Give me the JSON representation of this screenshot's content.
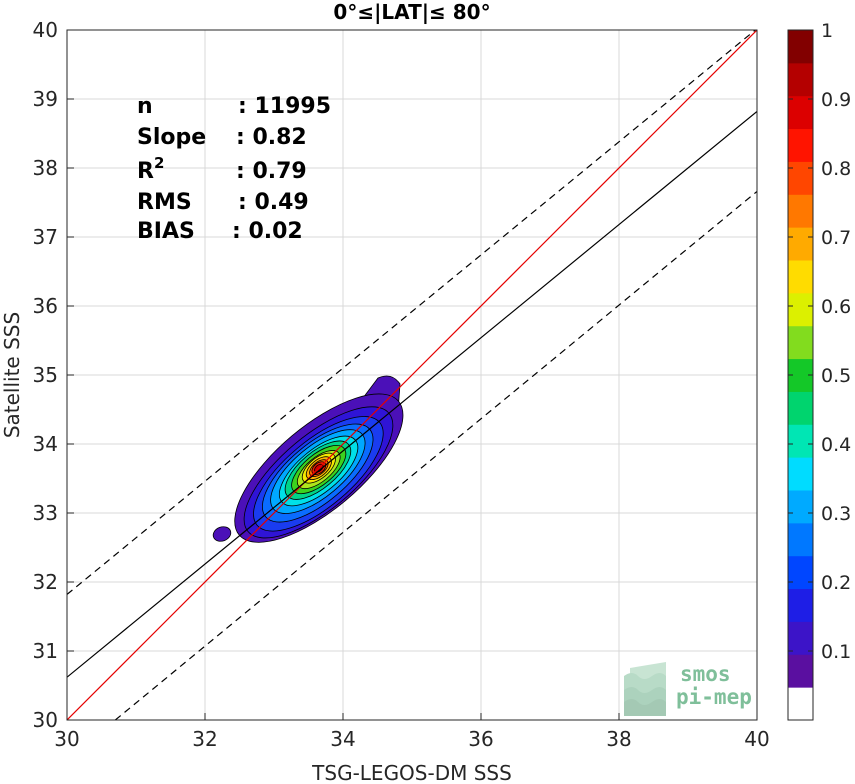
{
  "chart_data": {
    "type": "contour",
    "title": "0°≤|LAT|≤ 80°",
    "xlabel": "TSG-LEGOS-DM SSS",
    "ylabel": "Satellite SSS",
    "xlim": [
      30,
      40
    ],
    "ylim": [
      30,
      40
    ],
    "xticks": [
      "30",
      "32",
      "34",
      "36",
      "38",
      "40"
    ],
    "yticks": [
      "30",
      "31",
      "32",
      "33",
      "34",
      "35",
      "36",
      "37",
      "38",
      "39",
      "40"
    ],
    "grid": true,
    "stats": [
      {
        "label": "n",
        "value": ": 11995"
      },
      {
        "label": "Slope",
        "value": ": 0.82"
      },
      {
        "label": "R",
        "sup": "2",
        "value": ": 0.79"
      },
      {
        "label": "RMS",
        "value": ": 0.49"
      },
      {
        "label": "BIAS",
        "value": ": 0.02"
      }
    ],
    "lines": [
      {
        "kind": "identity",
        "color": "#e60000",
        "points": [
          [
            30,
            30
          ],
          [
            40,
            40
          ]
        ]
      },
      {
        "kind": "regression",
        "color": "#000000",
        "points": [
          [
            30,
            30.62
          ],
          [
            40,
            38.82
          ]
        ]
      },
      {
        "kind": "upper-bound",
        "color": "#000000",
        "dash": true,
        "points": [
          [
            30,
            31.82
          ],
          [
            40,
            40.02
          ]
        ]
      },
      {
        "kind": "lower-bound",
        "color": "#000000",
        "dash": true,
        "points": [
          [
            30.7,
            30
          ],
          [
            40,
            37.66
          ]
        ]
      }
    ],
    "density_peak": {
      "x": 33.65,
      "y": 33.65
    },
    "colorbar": {
      "ticks": [
        "0.1",
        "0.2",
        "0.3",
        "0.4",
        "0.5",
        "0.6",
        "0.7",
        "0.8",
        "0.9",
        "1"
      ],
      "range": [
        0,
        1
      ],
      "colors": [
        "#ffffff",
        "#5a0fa0",
        "#3c14c8",
        "#1e1ee6",
        "#0046ff",
        "#0078ff",
        "#00aaff",
        "#00dcff",
        "#00e6b4",
        "#00d46e",
        "#14c828",
        "#82dc1e",
        "#dcf000",
        "#ffdc00",
        "#ffaa00",
        "#ff7800",
        "#ff4600",
        "#ff1400",
        "#dc0000",
        "#b40000",
        "#820000"
      ]
    }
  },
  "logo": {
    "line1": "smos",
    "line2": "pi-mep"
  }
}
